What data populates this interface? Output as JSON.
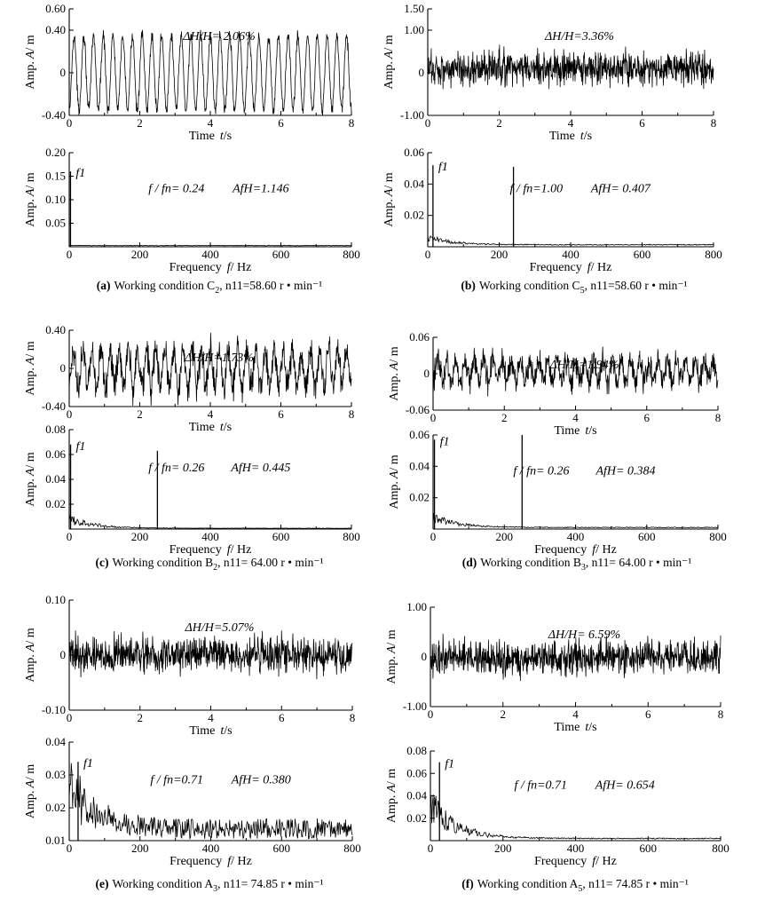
{
  "chart_data": [
    {
      "panel": "a",
      "type": "line",
      "kind": "time",
      "xlim": [
        0,
        8
      ],
      "ylim": [
        -0.4,
        0.6
      ],
      "x_ticks": [
        "0",
        "2",
        "4",
        "6",
        "8"
      ],
      "y_ticks": [
        "-0.40",
        "0",
        "0.40",
        "0.60"
      ],
      "y_tick_values": [
        -0.4,
        0,
        0.4,
        0.6
      ],
      "xlabel_main": "Time",
      "xlabel_var": "t",
      "xlabel_unit": "/s",
      "ylabel_main": "Amp.",
      "ylabel_var": "A",
      "ylabel_unit": "/ m",
      "annotation": "ΔH/H= 2.06%",
      "signal": {
        "cycles": 29,
        "amplitude": 0.35,
        "noise": 0.05,
        "offset": 0.0
      }
    },
    {
      "panel": "a",
      "type": "line",
      "kind": "spectrum",
      "xlim": [
        0,
        800
      ],
      "ylim": [
        0,
        0.2
      ],
      "x_ticks": [
        "0",
        "200",
        "400",
        "600",
        "800"
      ],
      "y_ticks": [
        "0.05",
        "0.10",
        "0.15",
        "0.20"
      ],
      "y_tick_values": [
        0.05,
        0.1,
        0.15,
        0.2
      ],
      "xlabel_main": "Frequency",
      "xlabel_var": "f",
      "xlabel_unit": "/ Hz",
      "ylabel_main": "Amp.",
      "ylabel_var": "A",
      "ylabel_unit": "/ m",
      "peak_label": "f1",
      "ratio_label": "f / fn= 0.24",
      "afh_label": "AfH=1.146",
      "peaks": [
        {
          "f": 3.6,
          "a": 0.16
        }
      ],
      "noise": {
        "base": 0.002,
        "decay": 0.0
      }
    },
    {
      "panel": "b",
      "type": "line",
      "kind": "time",
      "xlim": [
        0,
        8
      ],
      "ylim": [
        -1.0,
        1.5
      ],
      "x_ticks": [
        "0",
        "2",
        "4",
        "6",
        "8"
      ],
      "y_ticks": [
        "-1.00",
        "0",
        "1.00",
        "1.50"
      ],
      "y_tick_values": [
        -1.0,
        0,
        1.0,
        1.5
      ],
      "xlabel_main": "Time",
      "xlabel_var": "t",
      "xlabel_unit": "/s",
      "ylabel_main": "Amp.",
      "ylabel_var": "A",
      "ylabel_unit": "/ m",
      "annotation": "ΔH/H=3.36%",
      "signal": {
        "cycles": 0,
        "amplitude": 0.0,
        "noise": 0.35,
        "offset": 0.1
      }
    },
    {
      "panel": "b",
      "type": "line",
      "kind": "spectrum",
      "xlim": [
        0,
        800
      ],
      "ylim": [
        0,
        0.06
      ],
      "x_ticks": [
        "0",
        "200",
        "400",
        "600",
        "800"
      ],
      "y_ticks": [
        "0.02",
        "0.04",
        "0.06"
      ],
      "y_tick_values": [
        0.02,
        0.04,
        0.06
      ],
      "xlabel_main": "Frequency",
      "xlabel_var": "f",
      "xlabel_unit": "/ Hz",
      "ylabel_main": "Amp.",
      "ylabel_var": "A",
      "ylabel_unit": "/ m",
      "peak_label": "f1",
      "ratio_label": "f / fn=1.00",
      "afh_label": "AfH= 0.407",
      "peaks": [
        {
          "f": 14.6,
          "a": 0.052
        },
        {
          "f": 240,
          "a": 0.051
        }
      ],
      "noise": {
        "base": 0.001,
        "decay": 0.006
      }
    },
    {
      "panel": "c",
      "type": "line",
      "kind": "time",
      "xlim": [
        0,
        8
      ],
      "ylim": [
        -0.4,
        0.4
      ],
      "x_ticks": [
        "0",
        "2",
        "4",
        "6",
        "8"
      ],
      "y_ticks": [
        "-0.40",
        "0",
        "0.40"
      ],
      "y_tick_values": [
        -0.4,
        0,
        0.4
      ],
      "xlabel_main": "Time",
      "xlabel_var": "t",
      "xlabel_unit": "/s",
      "ylabel_main": "Amp.",
      "ylabel_var": "A",
      "ylabel_unit": "/ m",
      "annotation": "ΔH/H=1.73%",
      "signal": {
        "cycles": 31,
        "amplitude": 0.2,
        "noise": 0.14,
        "offset": 0.0
      }
    },
    {
      "panel": "c",
      "type": "line",
      "kind": "spectrum",
      "xlim": [
        0,
        800
      ],
      "ylim": [
        0,
        0.08
      ],
      "x_ticks": [
        "0",
        "200",
        "400",
        "600",
        "800"
      ],
      "y_ticks": [
        "0.02",
        "0.04",
        "0.06",
        "0.08"
      ],
      "y_tick_values": [
        0.02,
        0.04,
        0.06,
        0.08
      ],
      "xlabel_main": "Frequency",
      "xlabel_var": "f",
      "xlabel_unit": "/ Hz",
      "ylabel_main": "Amp.",
      "ylabel_var": "A",
      "ylabel_unit": "/ m",
      "peak_label": "f1",
      "ratio_label": "f / fn= 0.26",
      "afh_label": "AfH= 0.445",
      "peaks": [
        {
          "f": 3.9,
          "a": 0.068
        },
        {
          "f": 250,
          "a": 0.063
        }
      ],
      "noise": {
        "base": 0.0005,
        "decay": 0.01
      }
    },
    {
      "panel": "d",
      "type": "line",
      "kind": "time",
      "xlim": [
        0,
        8
      ],
      "ylim": [
        -0.06,
        0.06
      ],
      "x_ticks": [
        "0",
        "2",
        "4",
        "6",
        "8"
      ],
      "y_ticks": [
        "-0.06",
        "0",
        "0.06"
      ],
      "y_tick_values": [
        -0.06,
        0,
        0.06
      ],
      "xlabel_main": "Time",
      "xlabel_var": "t",
      "xlabel_unit": "/s",
      "ylabel_main": "Amp.",
      "ylabel_var": "A",
      "ylabel_unit": "/ m",
      "annotation": "ΔH/H=1.94%",
      "signal": {
        "cycles": 31,
        "amplitude": 0.018,
        "noise": 0.018,
        "offset": 0.005
      }
    },
    {
      "panel": "d",
      "type": "line",
      "kind": "spectrum",
      "xlim": [
        0,
        800
      ],
      "ylim": [
        0,
        0.06
      ],
      "x_ticks": [
        "0",
        "200",
        "400",
        "600",
        "800"
      ],
      "y_ticks": [
        "0.02",
        "0.04",
        "0.06"
      ],
      "y_tick_values": [
        0.02,
        0.04,
        0.06
      ],
      "xlabel_main": "Frequency",
      "xlabel_var": "f",
      "xlabel_unit": "/ Hz",
      "ylabel_main": "Amp.",
      "ylabel_var": "A",
      "ylabel_unit": "/ m",
      "peak_label": "f1",
      "ratio_label": "f / fn= 0.26",
      "afh_label": "AfH= 0.384",
      "peaks": [
        {
          "f": 3.9,
          "a": 0.057
        },
        {
          "f": 250,
          "a": 0.06
        }
      ],
      "noise": {
        "base": 0.0008,
        "decay": 0.008
      }
    },
    {
      "panel": "e",
      "type": "line",
      "kind": "time",
      "xlim": [
        0,
        8
      ],
      "ylim": [
        -0.1,
        0.1
      ],
      "x_ticks": [
        "0",
        "2",
        "4",
        "6",
        "8"
      ],
      "y_ticks": [
        "-0.10",
        "0",
        "0.10"
      ],
      "y_tick_values": [
        -0.1,
        0,
        0.1
      ],
      "xlabel_main": "Time",
      "xlabel_var": "t",
      "xlabel_unit": "/s",
      "ylabel_main": "Amp.",
      "ylabel_var": "A",
      "ylabel_unit": "/ m",
      "annotation": "ΔH/H=5.07%",
      "signal": {
        "cycles": 0,
        "amplitude": 0.0,
        "noise": 0.028,
        "offset": 0.0
      }
    },
    {
      "panel": "e",
      "type": "line",
      "kind": "spectrum",
      "xlim": [
        0,
        800
      ],
      "ylim": [
        0.01,
        0.04
      ],
      "x_ticks": [
        "0",
        "200",
        "400",
        "600",
        "800"
      ],
      "y_ticks": [
        "0.01",
        "0.02",
        "0.03",
        "0.04"
      ],
      "y_tick_values": [
        0.01,
        0.02,
        0.03,
        0.04
      ],
      "xlabel_main": "Frequency",
      "xlabel_var": "f",
      "xlabel_unit": "/ Hz",
      "ylabel_main": "Amp.",
      "ylabel_var": "A",
      "ylabel_unit": "/ m",
      "peak_label": "f1",
      "ratio_label": "f / fn=0.71",
      "afh_label": "AfH= 0.380",
      "peaks": [
        {
          "f": 25,
          "a": 0.034
        }
      ],
      "noise": {
        "base": 0.0105,
        "decay": 0.018
      }
    },
    {
      "panel": "f",
      "type": "line",
      "kind": "time",
      "xlim": [
        0,
        8
      ],
      "ylim": [
        -1.0,
        1.0
      ],
      "x_ticks": [
        "0",
        "2",
        "4",
        "6",
        "8"
      ],
      "y_ticks": [
        "-1.00",
        "0",
        "1.00"
      ],
      "y_tick_values": [
        -1.0,
        0,
        1.0
      ],
      "xlabel_main": "Time",
      "xlabel_var": "t",
      "xlabel_unit": "/s",
      "ylabel_main": "Amp.",
      "ylabel_var": "A",
      "ylabel_unit": "/ m",
      "annotation": "ΔH/H= 6.59%",
      "signal": {
        "cycles": 0,
        "amplitude": 0.0,
        "noise": 0.3,
        "offset": 0.0
      }
    },
    {
      "panel": "f",
      "type": "line",
      "kind": "spectrum",
      "xlim": [
        0,
        800
      ],
      "ylim": [
        0,
        0.08
      ],
      "x_ticks": [
        "0",
        "200",
        "400",
        "600",
        "800"
      ],
      "y_ticks": [
        "0.02",
        "0.04",
        "0.06",
        "0.08"
      ],
      "y_tick_values": [
        0.02,
        0.04,
        0.06,
        0.08
      ],
      "xlabel_main": "Frequency",
      "xlabel_var": "f",
      "xlabel_unit": "/ Hz",
      "ylabel_main": "Amp.",
      "ylabel_var": "A",
      "ylabel_unit": "/ m",
      "peak_label": "f1",
      "ratio_label": "f / fn=0.71",
      "afh_label": "AfH= 0.654",
      "peaks": [
        {
          "f": 25,
          "a": 0.07
        }
      ],
      "noise": {
        "base": 0.0015,
        "decay": 0.04
      }
    }
  ],
  "captions": [
    {
      "panel": "a",
      "label": "(a)",
      "text": "Working condition C",
      "sub": "2",
      "rest": ", n11=58.60 r • min⁻¹"
    },
    {
      "panel": "b",
      "label": "(b)",
      "text": "Working condition C",
      "sub": "5",
      "rest": ", n11=58.60 r • min⁻¹"
    },
    {
      "panel": "c",
      "label": "(c)",
      "text": "Working condition B",
      "sub": "2",
      "rest": ", n11= 64.00 r • min⁻¹"
    },
    {
      "panel": "d",
      "label": "(d)",
      "text": "Working condition B",
      "sub": "3",
      "rest": ", n11= 64.00 r • min⁻¹"
    },
    {
      "panel": "e",
      "label": "(e)",
      "text": "Working condition A",
      "sub": "3",
      "rest": ", n11= 74.85 r • min⁻¹"
    },
    {
      "panel": "f",
      "label": "(f)",
      "text": "Working condition A",
      "sub": "5",
      "rest": ", n11= 74.85 r • min⁻¹"
    }
  ]
}
